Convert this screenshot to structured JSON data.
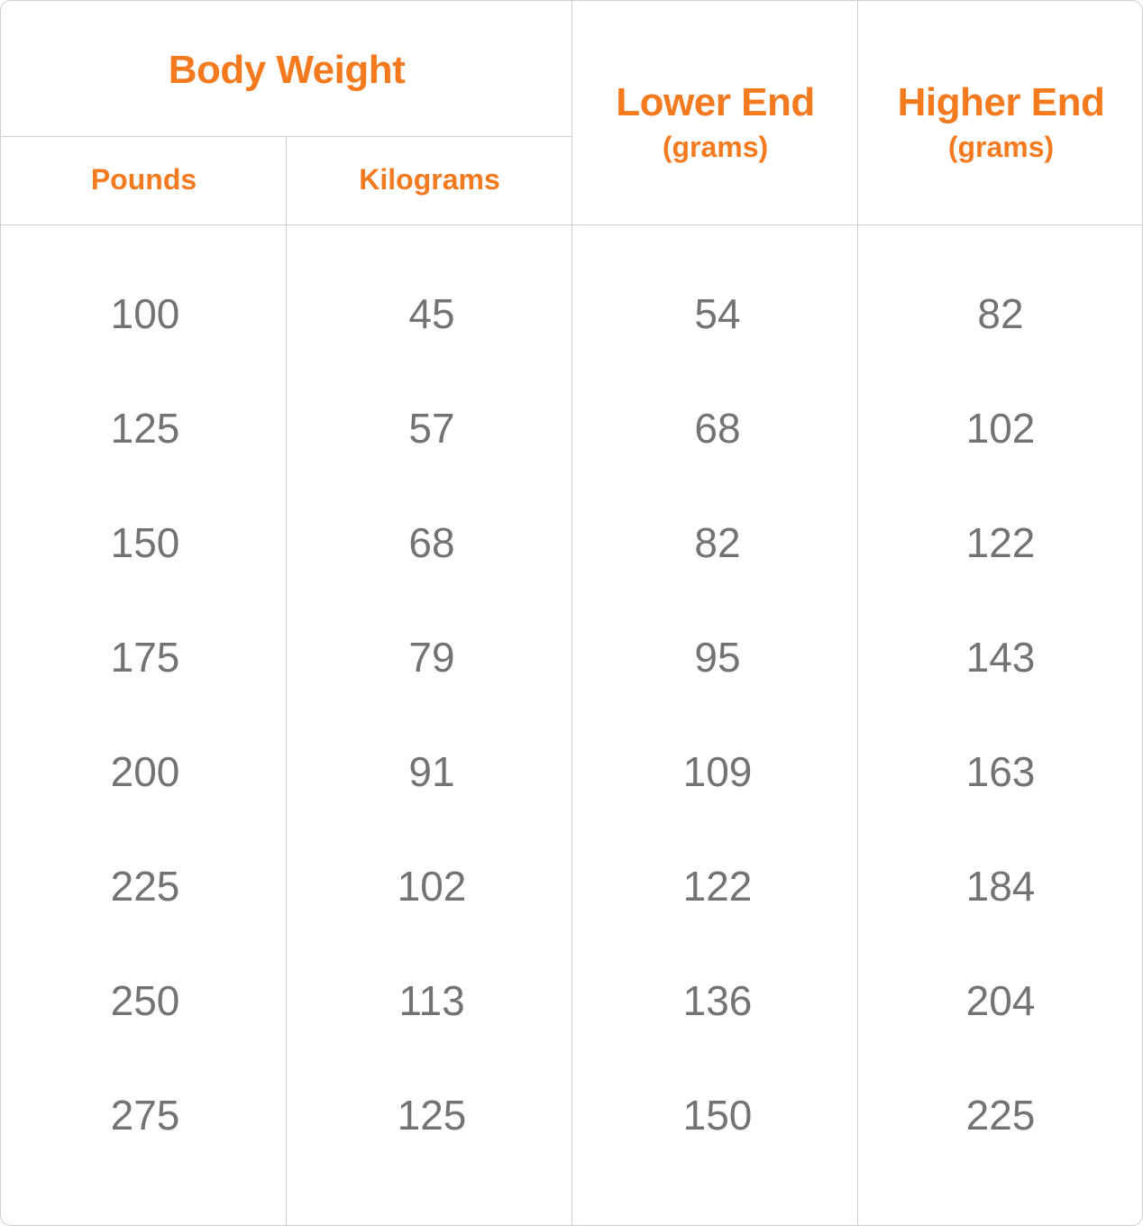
{
  "header": {
    "body_weight": "Body Weight",
    "pounds": "Pounds",
    "kilograms": "Kilograms",
    "lower_end": "Lower End",
    "lower_end_unit": "(grams)",
    "higher_end": "Higher End",
    "higher_end_unit": "(grams)"
  },
  "colors": {
    "header_text": "#f47a20",
    "cell_text": "#737373",
    "border": "#cfcfcf"
  },
  "rows": [
    [
      "100",
      "45",
      "54",
      "82"
    ],
    [
      "125",
      "57",
      "68",
      "102"
    ],
    [
      "150",
      "68",
      "82",
      "122"
    ],
    [
      "175",
      "79",
      "95",
      "143"
    ],
    [
      "200",
      "91",
      "109",
      "163"
    ],
    [
      "225",
      "102",
      "122",
      "184"
    ],
    [
      "250",
      "113",
      "136",
      "204"
    ],
    [
      "275",
      "125",
      "150",
      "225"
    ]
  ]
}
